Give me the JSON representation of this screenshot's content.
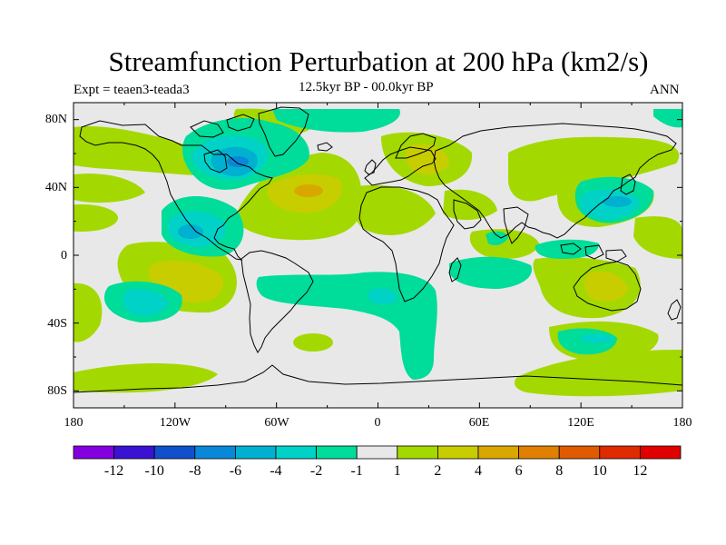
{
  "title": "Streamfunction Perturbation at 200 hPa (km2/s)",
  "left_string": "Expt = teaen3-teada3",
  "center_string": "12.5kyr BP - 00.0kyr BP",
  "right_string": "ANN",
  "map": {
    "projection": "cylindrical equidistant",
    "lon_range": [
      -180,
      180
    ],
    "lat_range": [
      -90,
      90
    ],
    "lon_ticks": [
      {
        "value": -180,
        "label": "180"
      },
      {
        "value": -120,
        "label": "120W"
      },
      {
        "value": -60,
        "label": "60W"
      },
      {
        "value": 0,
        "label": "0"
      },
      {
        "value": 60,
        "label": "60E"
      },
      {
        "value": 120,
        "label": "120E"
      },
      {
        "value": 180,
        "label": "180"
      }
    ],
    "lat_ticks": [
      {
        "value": 80,
        "label": "80N"
      },
      {
        "value": 40,
        "label": "40N"
      },
      {
        "value": 0,
        "label": "0"
      },
      {
        "value": -40,
        "label": "40S"
      },
      {
        "value": -80,
        "label": "80S"
      }
    ],
    "features": [
      {
        "name": "cyclonic anomaly over North America / Canada",
        "lon": -85,
        "lat": 55,
        "value": -6
      },
      {
        "name": "anticyclonic anomaly over North Atlantic",
        "lon": -38,
        "lat": 38,
        "value": 6
      },
      {
        "name": "anticyclonic anomaly over Scandinavia / Europe",
        "lon": 30,
        "lat": 60,
        "value": 4
      },
      {
        "name": "anticyclonic anomaly over Australia",
        "lon": 133,
        "lat": -22,
        "value": 4
      },
      {
        "name": "anticyclonic anomaly over tropical eastern Pacific",
        "lon": -115,
        "lat": -15,
        "value": 4
      },
      {
        "name": "cyclonic anomaly over northwest Pacific / Japan",
        "lon": 138,
        "lat": 28,
        "value": -4
      },
      {
        "name": "cyclonic anomaly off western Mexico",
        "lon": -118,
        "lat": 12,
        "value": -4
      },
      {
        "name": "cyclonic anomaly over South Pacific",
        "lon": -138,
        "lat": -27,
        "value": -4
      },
      {
        "name": "cyclonic anomaly in South Atlantic",
        "lon": 2,
        "lat": -23,
        "value": -4
      },
      {
        "name": "cyclonic anomaly in Southern Indian Ocean",
        "lon": 130,
        "lat": -50,
        "value": -4
      }
    ]
  },
  "colorbar": {
    "colors": [
      "#8400e0",
      "#3a12d2",
      "#1150cc",
      "#0a88d8",
      "#00b0d0",
      "#00d2c8",
      "#00dc9a",
      "#e8e8e8",
      "#a3d900",
      "#c8cd00",
      "#d8a800",
      "#e07f00",
      "#e05a00",
      "#e02a00",
      "#e00000"
    ],
    "labels": [
      "-12",
      "-10",
      "-8",
      "-6",
      "-4",
      "-2",
      "-1",
      "1",
      "2",
      "4",
      "6",
      "8",
      "10",
      "12"
    ]
  }
}
